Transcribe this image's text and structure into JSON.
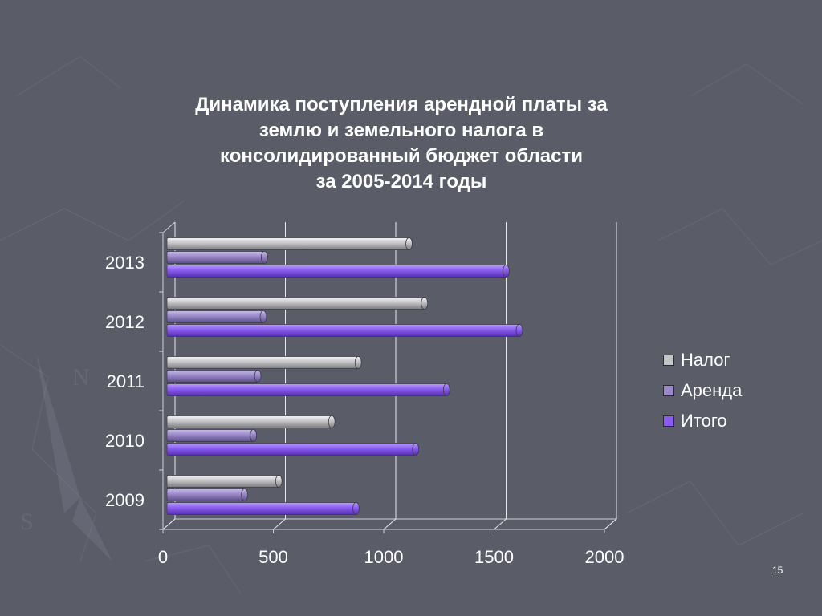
{
  "slide": {
    "title_lines": [
      "Динамика поступления арендной платы за",
      "землю и  земельного налога в",
      "консолидированный бюджет области",
      "за 2005-2014 годы"
    ],
    "page_number": "15",
    "background_color": "#5a5c68"
  },
  "chart_data": {
    "type": "bar",
    "orientation": "horizontal",
    "style": "3d-cylinder",
    "categories": [
      "2009",
      "2010",
      "2011",
      "2012",
      "2013"
    ],
    "series": [
      {
        "name": "Налог",
        "color": "#c4c4c8",
        "values": [
          510,
          750,
          870,
          1170,
          1100
        ]
      },
      {
        "name": "Аренда",
        "color": "#9a88c8",
        "values": [
          355,
          395,
          415,
          440,
          445
        ]
      },
      {
        "name": "Итого",
        "color": "#8a5cf0",
        "values": [
          860,
          1130,
          1270,
          1600,
          1540
        ]
      }
    ],
    "xlim": [
      0,
      2000
    ],
    "xticks": [
      "0",
      "500",
      "1000",
      "1500",
      "2000"
    ],
    "grid": true,
    "legend_position": "right"
  }
}
